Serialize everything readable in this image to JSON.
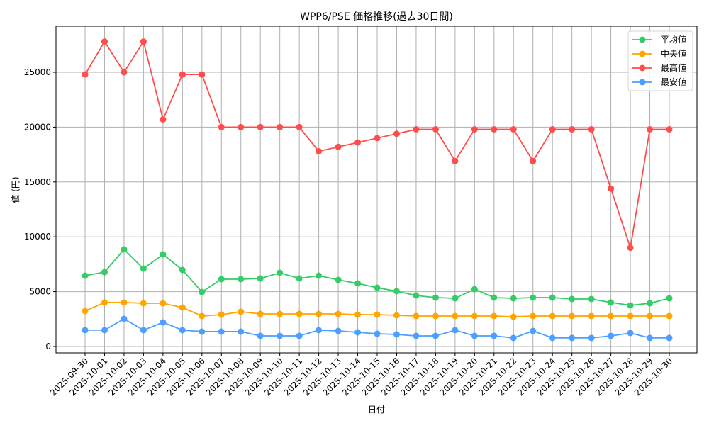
{
  "chart_data": {
    "type": "line",
    "title": "WPP6/PSE 価格推移(過去30日間)",
    "xlabel": "日付",
    "ylabel": "値 (円)",
    "ylim": [
      -600,
      29200
    ],
    "yticks": [
      0,
      5000,
      10000,
      15000,
      20000,
      25000
    ],
    "grid": true,
    "legend_position": "upper right",
    "categories": [
      "2025-09-30",
      "2025-10-01",
      "2025-10-02",
      "2025-10-03",
      "2025-10-04",
      "2025-10-05",
      "2025-10-06",
      "2025-10-07",
      "2025-10-08",
      "2025-10-09",
      "2025-10-10",
      "2025-10-11",
      "2025-10-12",
      "2025-10-13",
      "2025-10-14",
      "2025-10-15",
      "2025-10-16",
      "2025-10-17",
      "2025-10-18",
      "2025-10-19",
      "2025-10-20",
      "2025-10-21",
      "2025-10-22",
      "2025-10-23",
      "2025-10-24",
      "2025-10-25",
      "2025-10-26",
      "2025-10-27",
      "2025-10-28",
      "2025-10-29",
      "2025-10-30"
    ],
    "series": [
      {
        "name": "平均値",
        "color": "#33cc66",
        "values": [
          6460,
          6780,
          8850,
          7100,
          8400,
          6980,
          4970,
          6140,
          6140,
          6200,
          6720,
          6200,
          6460,
          6070,
          5750,
          5360,
          5040,
          4650,
          4460,
          4390,
          5230,
          4460,
          4390,
          4460,
          4460,
          4330,
          4330,
          4010,
          3750,
          3940,
          4390
        ]
      },
      {
        "name": "中央値",
        "color": "#ffa500",
        "values": [
          3230,
          4010,
          4010,
          3940,
          3940,
          3550,
          2780,
          2910,
          3170,
          2970,
          2970,
          2970,
          2970,
          2970,
          2910,
          2910,
          2840,
          2780,
          2780,
          2780,
          2780,
          2780,
          2710,
          2780,
          2780,
          2780,
          2780,
          2780,
          2780,
          2780,
          2780
        ]
      },
      {
        "name": "最高値",
        "color": "#ff4d4d",
        "values": [
          24800,
          27800,
          25000,
          27800,
          20700,
          24800,
          24800,
          20000,
          20000,
          20000,
          20000,
          20000,
          17800,
          18200,
          18600,
          19000,
          19400,
          19800,
          19800,
          16900,
          19800,
          19800,
          19800,
          16900,
          19800,
          19800,
          19800,
          14400,
          9000,
          19800,
          19800
        ]
      },
      {
        "name": "最安値",
        "color": "#4d9fff",
        "values": [
          1490,
          1490,
          2520,
          1490,
          2200,
          1490,
          1360,
          1360,
          1360,
          970,
          970,
          970,
          1490,
          1420,
          1290,
          1160,
          1100,
          970,
          970,
          1490,
          970,
          970,
          780,
          1420,
          780,
          780,
          780,
          970,
          1230,
          780,
          780
        ]
      }
    ]
  }
}
